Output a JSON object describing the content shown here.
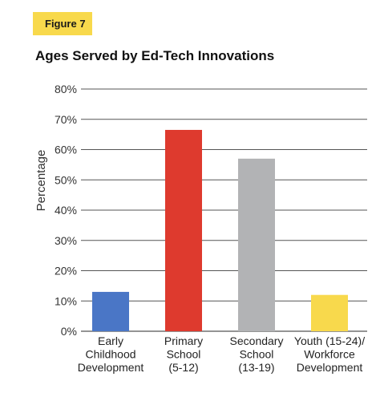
{
  "figure_label": "Figure 7",
  "chart_data": {
    "type": "bar",
    "title": "Ages Served by Ed-Tech Innovations",
    "xlabel": "",
    "ylabel": "Percentage",
    "ylim": [
      0,
      80
    ],
    "yticks": [
      0,
      10,
      20,
      30,
      40,
      50,
      60,
      70,
      80
    ],
    "ytick_labels": [
      "0%",
      "10%",
      "20%",
      "30%",
      "40%",
      "50%",
      "60%",
      "70%",
      "80%"
    ],
    "grid": true,
    "categories": [
      [
        "Early",
        "Childhood",
        "Development"
      ],
      [
        "Primary",
        "School",
        "(5-12)"
      ],
      [
        "Secondary",
        "School",
        "(13-19)"
      ],
      [
        "Youth (15-24)/",
        "Workforce",
        "Development"
      ]
    ],
    "values": [
      13,
      66.5,
      57,
      12
    ],
    "colors": [
      "#4a76c6",
      "#de3a2e",
      "#b2b3b5",
      "#f8d94c"
    ]
  }
}
